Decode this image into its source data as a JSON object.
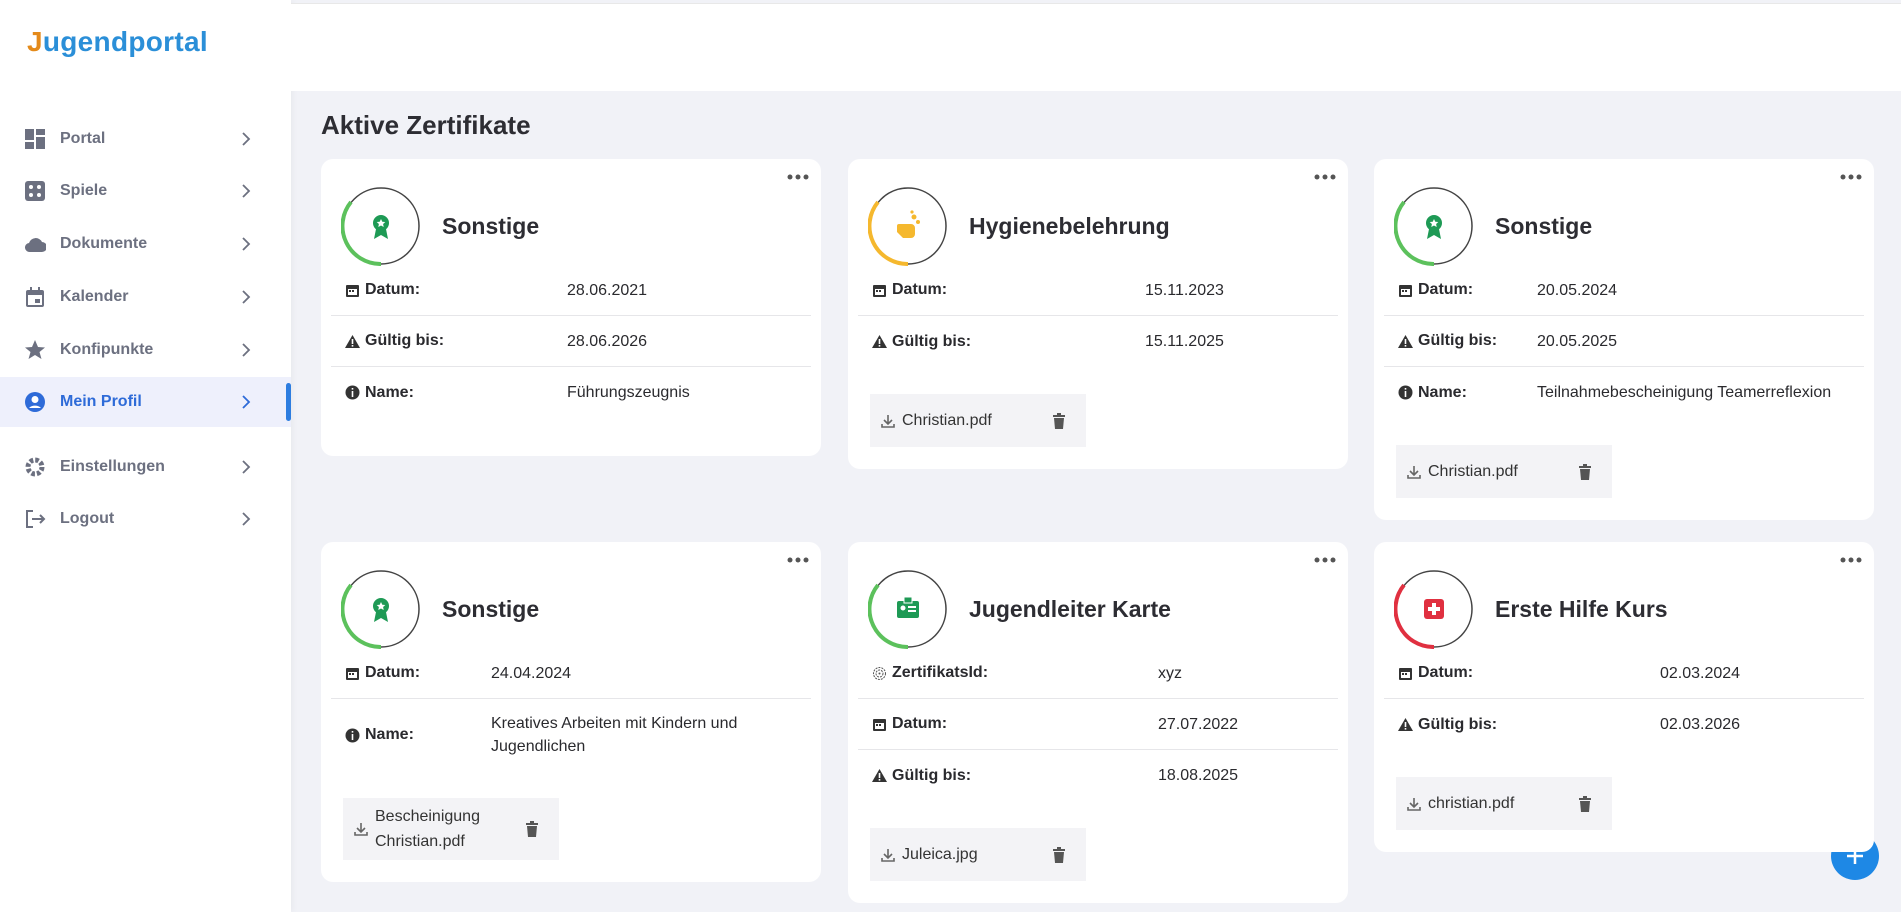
{
  "brand": "Jugendportal",
  "nav": [
    {
      "label": "Portal"
    },
    {
      "label": "Spiele"
    },
    {
      "label": "Dokumente"
    },
    {
      "label": "Kalender"
    },
    {
      "label": "Konfipunkte"
    },
    {
      "label": "Mein Profil"
    },
    {
      "label": "Einstellungen"
    },
    {
      "label": "Logout"
    }
  ],
  "page_title": "Aktive Zertifikate",
  "cards": [
    {
      "title": "Sonstige",
      "rows": [
        {
          "label": "Datum:",
          "value": "28.06.2021"
        },
        {
          "label": "Gültig bis:",
          "value": "28.06.2026"
        },
        {
          "label": "Name:",
          "value": "Führungszeugnis"
        }
      ],
      "files": []
    },
    {
      "title": "Hygienebelehrung",
      "rows": [
        {
          "label": "Datum:",
          "value": "15.11.2023"
        },
        {
          "label": "Gültig bis:",
          "value": "15.11.2025"
        }
      ],
      "files": [
        {
          "name": "Christian.pdf"
        }
      ]
    },
    {
      "title": "Sonstige",
      "rows": [
        {
          "label": "Datum:",
          "value": "20.05.2024"
        },
        {
          "label": "Gültig bis:",
          "value": "20.05.2025"
        },
        {
          "label": "Name:",
          "value": "Teilnahmebescheinigung Teamerreflexion"
        }
      ],
      "files": [
        {
          "name": "Christian.pdf"
        }
      ]
    },
    {
      "title": "Sonstige",
      "rows": [
        {
          "label": "Datum:",
          "value": "24.04.2024"
        },
        {
          "label": "Name:",
          "value": "Kreatives Arbeiten mit Kindern und Jugendlichen"
        }
      ],
      "files": [
        {
          "name": "Bescheinigung Christian.pdf"
        }
      ]
    },
    {
      "title": "Jugendleiter Karte",
      "rows": [
        {
          "label": "ZertifikatsId:",
          "value": "xyz"
        },
        {
          "label": "Datum:",
          "value": "27.07.2022"
        },
        {
          "label": "Gültig bis:",
          "value": "18.08.2025"
        }
      ],
      "files": [
        {
          "name": "Juleica.jpg"
        }
      ]
    },
    {
      "title": "Erste Hilfe Kurs",
      "rows": [
        {
          "label": "Datum:",
          "value": "02.03.2024"
        },
        {
          "label": "Gültig bis:",
          "value": "02.03.2026"
        }
      ],
      "files": [
        {
          "name": "christian.pdf"
        }
      ]
    }
  ]
}
